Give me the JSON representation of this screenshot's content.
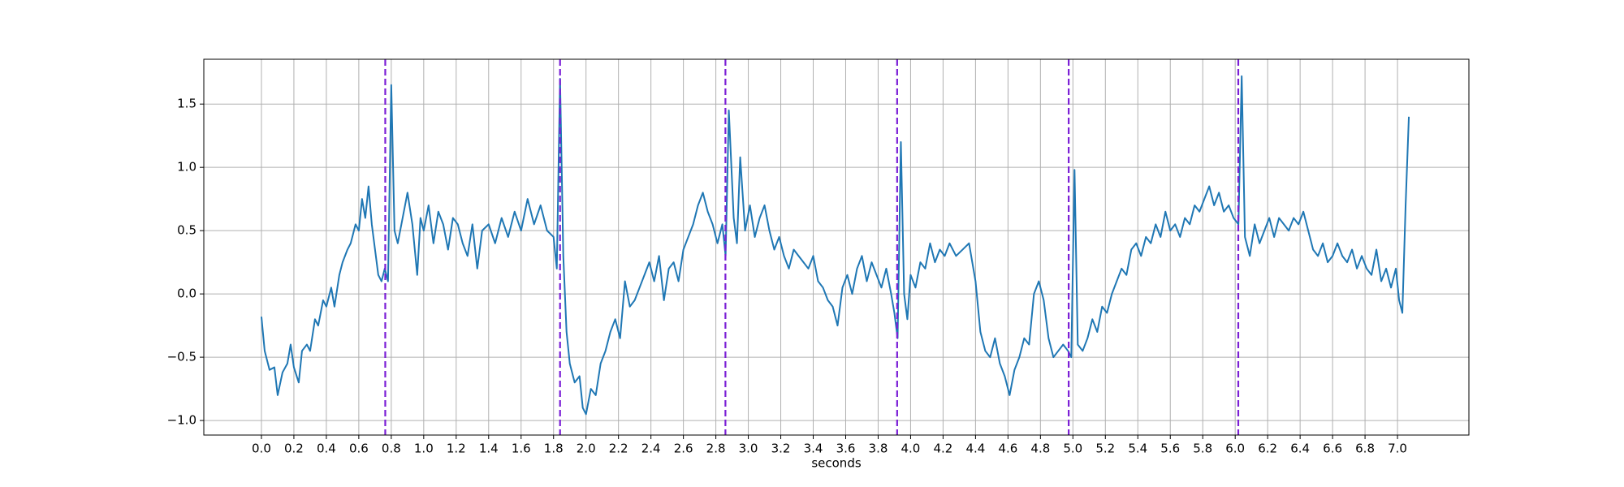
{
  "chart_data": {
    "type": "line",
    "xlabel": "seconds",
    "color": "#1f77b4",
    "grid": true,
    "xlim": [
      -0.355,
      7.44
    ],
    "ylim": [
      -1.115,
      1.854
    ],
    "xticks": [
      {
        "value": 0,
        "label": "0.0"
      },
      0.2,
      0.4,
      0.6,
      0.8,
      {
        "value": 1,
        "label": "1.0"
      },
      1.2,
      1.4,
      1.6,
      1.8,
      {
        "value": 2,
        "label": "2.0"
      },
      2.2,
      2.4,
      2.6,
      2.8,
      {
        "value": 3,
        "label": "3.0"
      },
      3.2,
      3.4,
      3.6,
      3.8,
      {
        "value": 4,
        "label": "4.0"
      },
      4.2,
      4.4,
      4.6,
      4.8,
      {
        "value": 5,
        "label": "5.0"
      },
      5.2,
      5.4,
      5.6,
      5.8,
      {
        "value": 6,
        "label": "6.0"
      },
      6.2,
      6.4,
      6.6,
      6.8,
      {
        "value": 7,
        "label": "7.0"
      }
    ],
    "yticks": [
      {
        "value": -1,
        "label": "−1.0"
      },
      {
        "value": -0.5,
        "label": "−0.5"
      },
      {
        "value": 0,
        "label": "0.0"
      },
      0.5,
      {
        "value": 1,
        "label": "1.0"
      },
      1.5
    ],
    "vlines": {
      "x": [
        0.763,
        1.84,
        2.859,
        3.917,
        4.974,
        6.019
      ],
      "color": "#7b1fd6"
    },
    "x": [
      0.0,
      0.02,
      0.05,
      0.08,
      0.1,
      0.13,
      0.16,
      0.18,
      0.2,
      0.23,
      0.25,
      0.28,
      0.3,
      0.33,
      0.35,
      0.38,
      0.4,
      0.43,
      0.45,
      0.48,
      0.5,
      0.53,
      0.55,
      0.58,
      0.6,
      0.62,
      0.64,
      0.66,
      0.68,
      0.7,
      0.72,
      0.74,
      0.76,
      0.78,
      0.8,
      0.82,
      0.84,
      0.87,
      0.9,
      0.93,
      0.96,
      0.98,
      1.0,
      1.03,
      1.06,
      1.09,
      1.12,
      1.15,
      1.18,
      1.21,
      1.24,
      1.27,
      1.3,
      1.33,
      1.36,
      1.4,
      1.44,
      1.48,
      1.52,
      1.56,
      1.6,
      1.64,
      1.68,
      1.72,
      1.76,
      1.8,
      1.82,
      1.84,
      1.86,
      1.88,
      1.9,
      1.93,
      1.96,
      1.98,
      2.0,
      2.03,
      2.06,
      2.09,
      2.12,
      2.15,
      2.18,
      2.21,
      2.24,
      2.27,
      2.3,
      2.33,
      2.36,
      2.39,
      2.42,
      2.45,
      2.48,
      2.51,
      2.54,
      2.57,
      2.6,
      2.63,
      2.66,
      2.69,
      2.72,
      2.75,
      2.78,
      2.81,
      2.84,
      2.86,
      2.88,
      2.91,
      2.93,
      2.95,
      2.98,
      3.01,
      3.04,
      3.07,
      3.1,
      3.13,
      3.16,
      3.19,
      3.22,
      3.25,
      3.28,
      3.31,
      3.34,
      3.37,
      3.4,
      3.43,
      3.46,
      3.49,
      3.52,
      3.55,
      3.58,
      3.61,
      3.64,
      3.67,
      3.7,
      3.73,
      3.76,
      3.79,
      3.82,
      3.85,
      3.88,
      3.9,
      3.92,
      3.94,
      3.96,
      3.98,
      4.0,
      4.03,
      4.06,
      4.09,
      4.12,
      4.15,
      4.18,
      4.21,
      4.24,
      4.28,
      4.32,
      4.36,
      4.4,
      4.43,
      4.46,
      4.49,
      4.52,
      4.55,
      4.58,
      4.61,
      4.64,
      4.67,
      4.7,
      4.73,
      4.76,
      4.79,
      4.82,
      4.85,
      4.88,
      4.91,
      4.94,
      4.97,
      4.99,
      5.01,
      5.03,
      5.06,
      5.09,
      5.12,
      5.15,
      5.18,
      5.21,
      5.24,
      5.27,
      5.3,
      5.33,
      5.36,
      5.39,
      5.42,
      5.45,
      5.48,
      5.51,
      5.54,
      5.57,
      5.6,
      5.63,
      5.66,
      5.69,
      5.72,
      5.75,
      5.78,
      5.81,
      5.84,
      5.87,
      5.9,
      5.93,
      5.96,
      5.99,
      6.02,
      6.04,
      6.06,
      6.09,
      6.12,
      6.15,
      6.18,
      6.21,
      6.24,
      6.27,
      6.3,
      6.33,
      6.36,
      6.39,
      6.42,
      6.45,
      6.48,
      6.51,
      6.54,
      6.57,
      6.6,
      6.63,
      6.66,
      6.69,
      6.72,
      6.75,
      6.78,
      6.81,
      6.84,
      6.87,
      6.9,
      6.93,
      6.96,
      6.99,
      7.01,
      7.03,
      7.05,
      7.07
    ],
    "values": [
      -0.18,
      -0.45,
      -0.6,
      -0.58,
      -0.8,
      -0.62,
      -0.55,
      -0.4,
      -0.58,
      -0.7,
      -0.45,
      -0.4,
      -0.45,
      -0.2,
      -0.25,
      -0.05,
      -0.1,
      0.05,
      -0.1,
      0.15,
      0.25,
      0.35,
      0.4,
      0.55,
      0.5,
      0.75,
      0.6,
      0.85,
      0.55,
      0.35,
      0.15,
      0.1,
      0.2,
      0.1,
      1.65,
      0.5,
      0.4,
      0.6,
      0.8,
      0.55,
      0.15,
      0.6,
      0.5,
      0.7,
      0.4,
      0.65,
      0.55,
      0.35,
      0.6,
      0.55,
      0.4,
      0.3,
      0.55,
      0.2,
      0.5,
      0.55,
      0.4,
      0.6,
      0.45,
      0.65,
      0.5,
      0.75,
      0.55,
      0.7,
      0.5,
      0.45,
      0.2,
      1.7,
      0.3,
      -0.3,
      -0.55,
      -0.7,
      -0.65,
      -0.9,
      -0.95,
      -0.75,
      -0.8,
      -0.55,
      -0.45,
      -0.3,
      -0.2,
      -0.35,
      0.1,
      -0.1,
      -0.05,
      0.05,
      0.15,
      0.25,
      0.1,
      0.3,
      -0.05,
      0.2,
      0.25,
      0.1,
      0.35,
      0.45,
      0.55,
      0.7,
      0.8,
      0.65,
      0.55,
      0.4,
      0.55,
      0.3,
      1.45,
      0.6,
      0.4,
      1.08,
      0.5,
      0.7,
      0.45,
      0.6,
      0.7,
      0.5,
      0.35,
      0.45,
      0.3,
      0.2,
      0.35,
      0.3,
      0.25,
      0.2,
      0.3,
      0.1,
      0.05,
      -0.05,
      -0.1,
      -0.25,
      0.05,
      0.15,
      0.0,
      0.2,
      0.3,
      0.1,
      0.25,
      0.15,
      0.05,
      0.2,
      0.0,
      -0.15,
      -0.35,
      1.2,
      0.0,
      -0.2,
      0.15,
      0.05,
      0.25,
      0.2,
      0.4,
      0.25,
      0.35,
      0.3,
      0.4,
      0.3,
      0.35,
      0.4,
      0.1,
      -0.3,
      -0.45,
      -0.5,
      -0.35,
      -0.55,
      -0.65,
      -0.8,
      -0.6,
      -0.5,
      -0.35,
      -0.4,
      0.0,
      0.1,
      -0.05,
      -0.35,
      -0.5,
      -0.45,
      -0.4,
      -0.45,
      -0.5,
      0.98,
      -0.4,
      -0.45,
      -0.35,
      -0.2,
      -0.3,
      -0.1,
      -0.15,
      0.0,
      0.1,
      0.2,
      0.15,
      0.35,
      0.4,
      0.3,
      0.45,
      0.4,
      0.55,
      0.45,
      0.65,
      0.5,
      0.55,
      0.45,
      0.6,
      0.55,
      0.7,
      0.65,
      0.75,
      0.85,
      0.7,
      0.8,
      0.65,
      0.7,
      0.6,
      0.55,
      1.72,
      0.45,
      0.3,
      0.55,
      0.4,
      0.5,
      0.6,
      0.45,
      0.6,
      0.55,
      0.5,
      0.6,
      0.55,
      0.65,
      0.5,
      0.35,
      0.3,
      0.4,
      0.25,
      0.3,
      0.4,
      0.3,
      0.25,
      0.35,
      0.2,
      0.3,
      0.2,
      0.15,
      0.35,
      0.1,
      0.2,
      0.05,
      0.2,
      -0.05,
      -0.15,
      0.7,
      1.4
    ]
  }
}
